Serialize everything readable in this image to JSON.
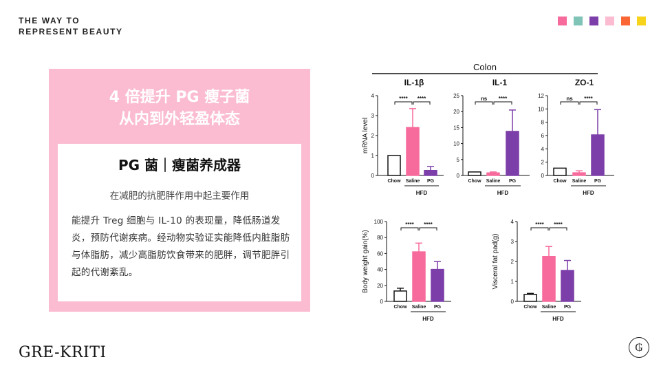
{
  "brand": {
    "tagline_line1": "THE WAY TO",
    "tagline_line2": "REPRESENT BEAUTY",
    "logo": "GRE-KRITI",
    "seal_glyph": "₲",
    "swatch_colors": [
      "#f76a9c",
      "#7fc4b6",
      "#7c3ea8",
      "#fbbcd1",
      "#fa6634",
      "#f7d31c"
    ]
  },
  "panel": {
    "title_line1": "4 倍提升 PG 瘦子菌",
    "title_line2": "从内到外轻盈体态",
    "heading": "PG 菌｜瘦菌养成器",
    "subheading": "在减肥的抗肥胖作用中起主要作用",
    "body": "能提升 Treg 细胞与 IL-10 的表现量，降低肠道发炎，预防代谢疾病。经动物实验证实能降低内脏脂肪与体脂肪，减少高脂肪饮食带来的肥胖，调节肥胖引起的代谢紊乱。"
  },
  "figure": {
    "colon_label": "Colon",
    "colors": {
      "chow": "#ffffff",
      "saline": "#f76a9c",
      "pg": "#7c3ea8"
    }
  },
  "chart_data": [
    {
      "type": "bar",
      "title": "IL-1β",
      "ylabel": "mRNA level",
      "ylim": [
        0,
        4
      ],
      "yticks": [
        0,
        1,
        2,
        3,
        4
      ],
      "categories": [
        "Chow",
        "Saline",
        "PG"
      ],
      "group_label": "HFD",
      "values": [
        1.0,
        2.4,
        0.25
      ],
      "errors": [
        0,
        0.95,
        0.2
      ],
      "significance": [
        {
          "pair": [
            0,
            1
          ],
          "label": "****"
        },
        {
          "pair": [
            1,
            2
          ],
          "label": "****"
        }
      ]
    },
    {
      "type": "bar",
      "title": "IL-1",
      "ylabel": "",
      "ylim": [
        0,
        25
      ],
      "yticks": [
        0,
        5,
        10,
        15,
        20,
        25
      ],
      "categories": [
        "Chow",
        "Saline",
        "PG"
      ],
      "group_label": "HFD",
      "values": [
        1.1,
        0.8,
        13.8
      ],
      "errors": [
        0,
        0.3,
        6.7
      ],
      "significance": [
        {
          "pair": [
            0,
            1
          ],
          "label": "ns"
        },
        {
          "pair": [
            1,
            2
          ],
          "label": "****"
        }
      ]
    },
    {
      "type": "bar",
      "title": "ZO-1",
      "ylabel": "",
      "ylim": [
        0,
        12
      ],
      "yticks": [
        0,
        2,
        4,
        6,
        8,
        10,
        12
      ],
      "categories": [
        "Chow",
        "Saline",
        "PG"
      ],
      "group_label": "HFD",
      "values": [
        1.1,
        0.4,
        6.1
      ],
      "errors": [
        0,
        0.3,
        3.8
      ],
      "significance": [
        {
          "pair": [
            0,
            1
          ],
          "label": "ns"
        },
        {
          "pair": [
            1,
            2
          ],
          "label": "****"
        }
      ]
    },
    {
      "type": "bar",
      "title": "",
      "ylabel": "Body weight gain(%)",
      "ylim": [
        0,
        100
      ],
      "yticks": [
        0,
        20,
        40,
        60,
        80,
        100
      ],
      "categories": [
        "Chow",
        "Saline",
        "PG"
      ],
      "group_label": "HFD",
      "values": [
        13,
        62,
        40
      ],
      "errors": [
        3.5,
        11,
        10
      ],
      "significance": [
        {
          "pair": [
            0,
            1
          ],
          "label": "****"
        },
        {
          "pair": [
            1,
            2
          ],
          "label": "****"
        }
      ]
    },
    {
      "type": "bar",
      "title": "",
      "ylabel": "Visceral fat pad(g)",
      "ylim": [
        0,
        4
      ],
      "yticks": [
        0,
        1,
        2,
        3,
        4
      ],
      "categories": [
        "Chow",
        "Saline",
        "PG"
      ],
      "group_label": "HFD",
      "values": [
        0.35,
        2.25,
        1.55
      ],
      "errors": [
        0.05,
        0.5,
        0.5
      ],
      "significance": [
        {
          "pair": [
            0,
            1
          ],
          "label": "****"
        },
        {
          "pair": [
            1,
            2
          ],
          "label": "****"
        }
      ]
    }
  ]
}
